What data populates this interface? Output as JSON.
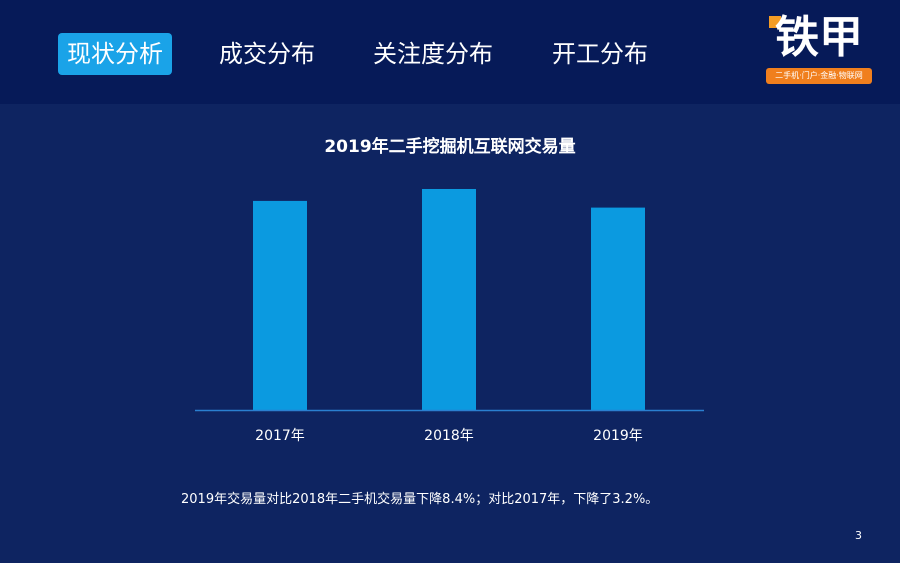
{
  "header": {
    "tabs": [
      {
        "label": "现状分析",
        "active": true
      },
      {
        "label": "成交分布",
        "active": false
      },
      {
        "label": "关注度分布",
        "active": false
      },
      {
        "label": "开工分布",
        "active": false
      }
    ]
  },
  "logo": {
    "text": "铁甲",
    "tagline": "二手机·门户·金融·物联网"
  },
  "chart_data": {
    "type": "bar",
    "title": "2019年二手挖掘机互联网交易量",
    "categories": [
      "2017年",
      "2018年",
      "2019年"
    ],
    "values": [
      100,
      105.7,
      96.8
    ],
    "ylim": [
      0,
      110
    ],
    "grid": false,
    "bar_color": "#0b9ae0",
    "axis_color": "#2a7fd0"
  },
  "footer": {
    "note": "2019年交易量对比2018年二手机交易量下降8.4%；对比2017年，下降了3.2%。",
    "page_number": "3"
  },
  "colors": {
    "background": "#0e2461",
    "header_background": "#061a58",
    "active_tab": "#1aa3e8",
    "logo_accent": "#f07f1d"
  }
}
